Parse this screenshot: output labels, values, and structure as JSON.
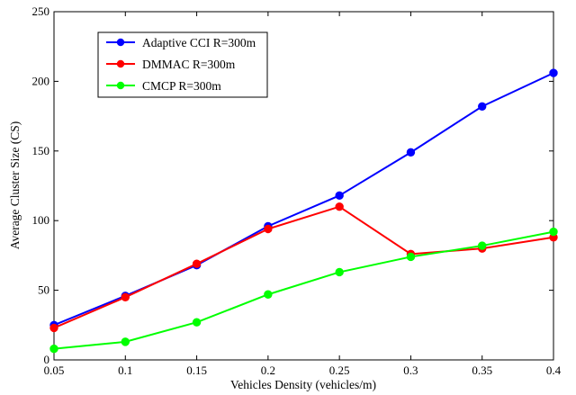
{
  "chart_data": {
    "type": "line",
    "title": "",
    "xlabel": "Vehicles Density (vehicles/m)",
    "ylabel": "Average Cluster Size (CS)",
    "x": [
      0.05,
      0.1,
      0.15,
      0.2,
      0.25,
      0.3,
      0.35,
      0.4
    ],
    "x_tick_labels": [
      "0.05",
      "0.1",
      "0.15",
      "0.2",
      "0.25",
      "0.3",
      "0.35",
      "0.4"
    ],
    "y_ticks": [
      0,
      50,
      100,
      150,
      200,
      250
    ],
    "y_tick_labels": [
      "0",
      "50",
      "100",
      "150",
      "200",
      "250"
    ],
    "xlim": [
      0.05,
      0.4
    ],
    "ylim": [
      0,
      250
    ],
    "grid": false,
    "legend_placement": "top-left",
    "series": [
      {
        "name": "Adaptive CCI R=300m",
        "color": "#0000ff",
        "values": [
          25,
          46,
          68,
          96,
          118,
          149,
          182,
          206
        ]
      },
      {
        "name": "DMMAC R=300m",
        "color": "#ff0000",
        "values": [
          23,
          45,
          69,
          94,
          110,
          76,
          80,
          88
        ]
      },
      {
        "name": "CMCP R=300m",
        "color": "#00ff00",
        "values": [
          8,
          13,
          27,
          47,
          63,
          74,
          82,
          92
        ]
      }
    ]
  }
}
